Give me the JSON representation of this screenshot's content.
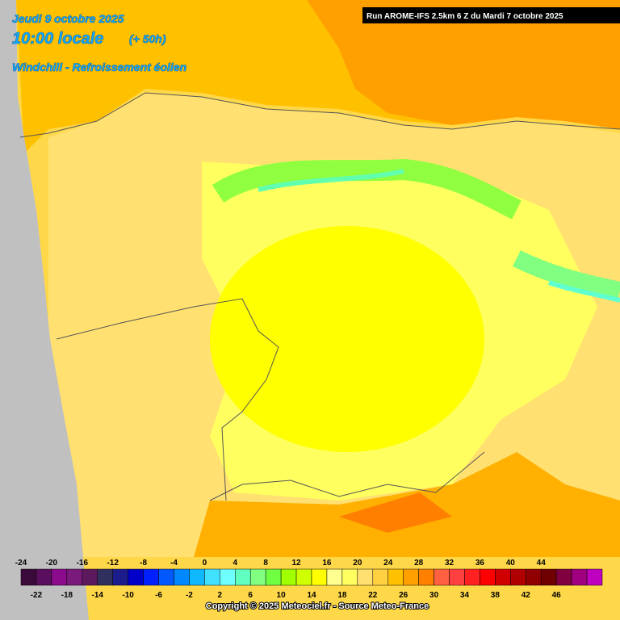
{
  "header": {
    "date": "Jeudi 9 octobre 2025",
    "time": "10:00 locale",
    "offset": "(+ 50h)",
    "subtitle": "Windchill - Refroissement éolien",
    "run": "Run AROME-IFS 2.5km 6 Z du Mardi 7 octobre 2025"
  },
  "legend": {
    "labels": [
      -24,
      -22,
      -20,
      -18,
      -16,
      -14,
      -12,
      -10,
      -8,
      -6,
      -4,
      -2,
      0,
      2,
      4,
      6,
      8,
      10,
      12,
      14,
      16,
      18,
      20,
      22,
      24,
      26,
      28,
      30,
      32,
      34,
      36,
      38,
      40,
      42,
      44,
      46
    ],
    "colors": [
      "#3a0a3a",
      "#5a0f5e",
      "#8c0a8c",
      "#7a1a7a",
      "#5c1a5c",
      "#30305e",
      "#1c1c8c",
      "#0000c8",
      "#0020ff",
      "#0058ff",
      "#0088ff",
      "#10b8ff",
      "#40e0ff",
      "#70ffff",
      "#60ffc0",
      "#80ff80",
      "#70ff40",
      "#a0ff00",
      "#d0ff00",
      "#ffff00",
      "#ffff90",
      "#ffff60",
      "#ffe070",
      "#ffd040",
      "#ffc000",
      "#ffa000",
      "#ff8000",
      "#ff6040",
      "#ff4040",
      "#ff2020",
      "#ff0000",
      "#d00000",
      "#b00000",
      "#900000",
      "#700000",
      "#800040",
      "#a00080",
      "#c000c0"
    ]
  },
  "footer": {
    "copyright": "Copyright © 2025 Meteociel.fr - Source Meteo-France"
  }
}
